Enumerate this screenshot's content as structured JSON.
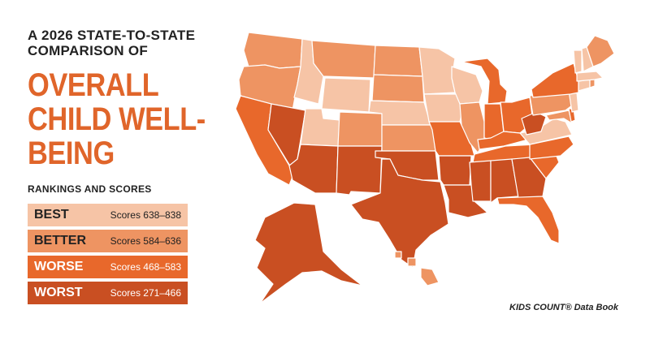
{
  "header": {
    "subtitle": "A 2026 STATE-TO-STATE COMPARISON OF",
    "title": "OVERALL CHILD WELL-BEING"
  },
  "legend": {
    "heading": "RANKINGS AND SCORES",
    "items": [
      {
        "key": "best",
        "label": "BEST",
        "scores": "Scores 638–838",
        "color": "#f6c4a6",
        "text_color": "#222222"
      },
      {
        "key": "better",
        "label": "BETTER",
        "scores": "Scores 584–636",
        "color": "#ee9462",
        "text_color": "#222222"
      },
      {
        "key": "worse",
        "label": "WORSE",
        "scores": "Scores 468–583",
        "color": "#e8682b",
        "text_color": "#ffffff"
      },
      {
        "key": "worst",
        "label": "WORST",
        "scores": "Scores 271–466",
        "color": "#c94f22",
        "text_color": "#ffffff"
      }
    ]
  },
  "source": "KIDS COUNT® Data Book",
  "map": {
    "land_color": "#ffffff",
    "states": {
      "WA": "better",
      "OR": "better",
      "ID": "best",
      "MT": "better",
      "WY": "best",
      "ND": "better",
      "SD": "better",
      "NE": "best",
      "KS": "better",
      "MN": "best",
      "IA": "best",
      "WI": "best",
      "MI": "worse",
      "IL": "better",
      "IN": "worse",
      "OH": "worse",
      "PA": "better",
      "NY": "worse",
      "VT": "best",
      "NH": "best",
      "ME": "better",
      "MA": "best",
      "CT": "best",
      "RI": "better",
      "NJ": "best",
      "DE": "worse",
      "MD": "better",
      "VA": "best",
      "WV": "worst",
      "KY": "worse",
      "TN": "worse",
      "NC": "worse",
      "SC": "worse",
      "GA": "worst",
      "FL": "worse",
      "AL": "worst",
      "MS": "worst",
      "LA": "worst",
      "AR": "worst",
      "MO": "worse",
      "OK": "worst",
      "TX": "worst",
      "NM": "worst",
      "AZ": "worst",
      "CO": "better",
      "UT": "best",
      "NV": "worst",
      "CA": "worse",
      "AK": "worst",
      "HI": "better"
    }
  }
}
